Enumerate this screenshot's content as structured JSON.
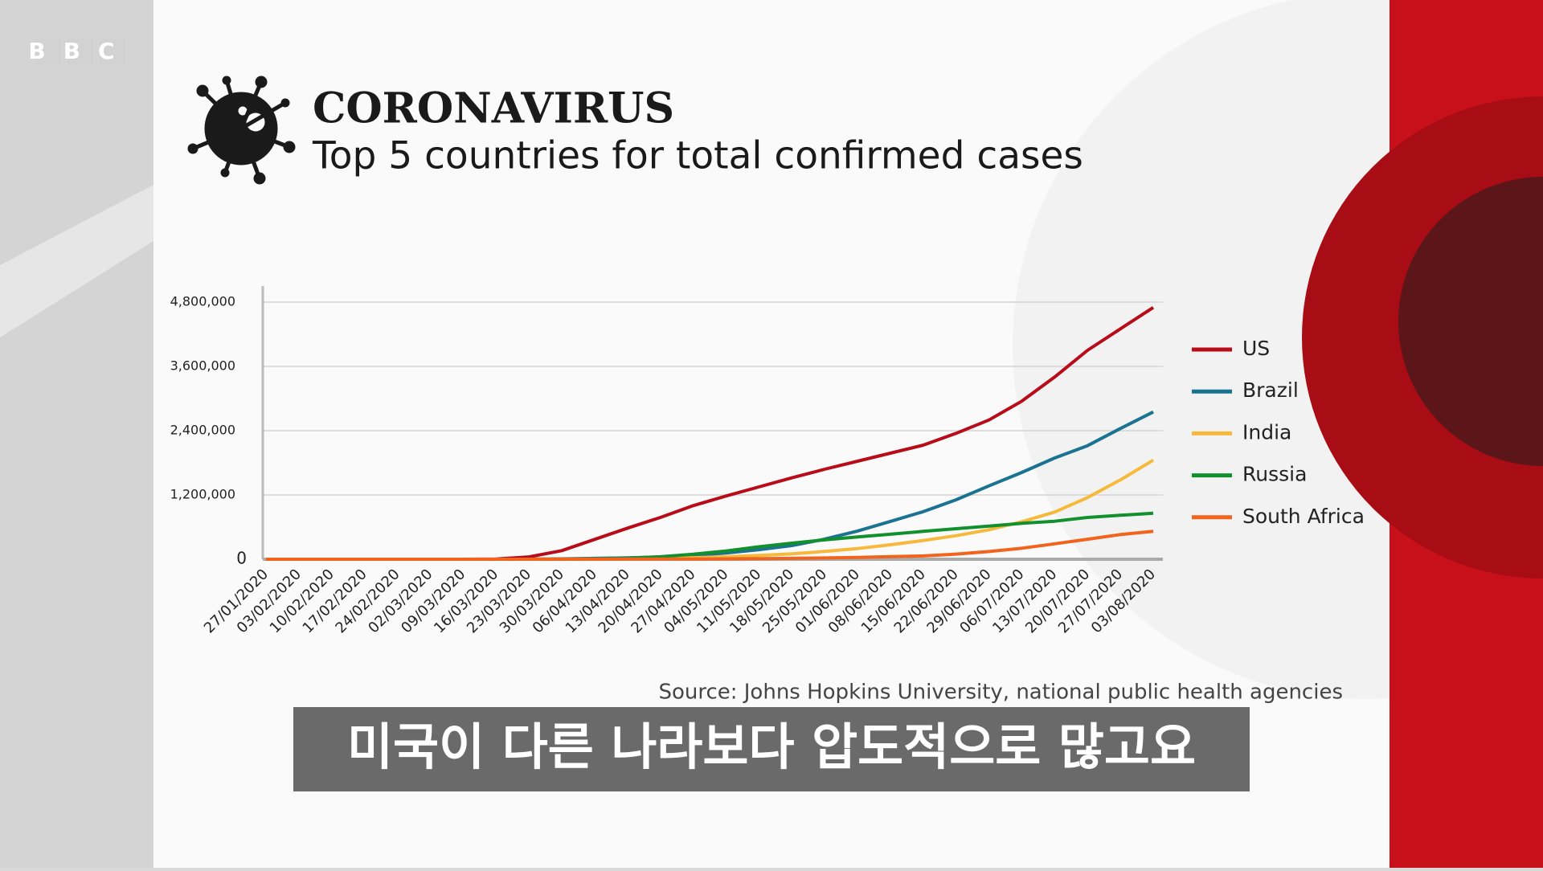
{
  "brand": "BBC",
  "caption": "미국이 다른 나라보다 압도적으로 많고요",
  "chart_data": {
    "type": "line",
    "title": "CORONAVIRUS",
    "subtitle": "Top 5 countries for total confirmed cases",
    "source": "Source: Johns Hopkins University, national public health agencies",
    "categories": [
      "27/01/2020",
      "03/02/2020",
      "10/02/2020",
      "17/02/2020",
      "24/02/2020",
      "02/03/2020",
      "09/03/2020",
      "16/03/2020",
      "23/03/2020",
      "30/03/2020",
      "06/04/2020",
      "13/04/2020",
      "20/04/2020",
      "27/04/2020",
      "04/05/2020",
      "11/05/2020",
      "18/05/2020",
      "25/05/2020",
      "01/06/2020",
      "08/06/2020",
      "15/06/2020",
      "22/06/2020",
      "29/06/2020",
      "06/07/2020",
      "13/07/2020",
      "20/07/2020",
      "27/07/2020",
      "03/08/2020"
    ],
    "series": [
      {
        "name": "US",
        "color": "#b80d19",
        "values": [
          5,
          11,
          12,
          15,
          15,
          100,
          600,
          4600,
          43000,
          160000,
          370000,
          580000,
          780000,
          1000000,
          1180000,
          1350000,
          1520000,
          1680000,
          1830000,
          1980000,
          2130000,
          2350000,
          2600000,
          2950000,
          3400000,
          3900000,
          4300000,
          4700000
        ]
      },
      {
        "name": "Brazil",
        "color": "#1b7392",
        "values": [
          0,
          0,
          0,
          0,
          0,
          0,
          0,
          200,
          1900,
          6800,
          16000,
          25000,
          43000,
          72000,
          115000,
          178000,
          255000,
          375000,
          526000,
          707000,
          888000,
          1110000,
          1370000,
          1620000,
          1890000,
          2120000,
          2440000,
          2750000
        ]
      },
      {
        "name": "India",
        "color": "#f6b93b",
        "values": [
          0,
          0,
          0,
          0,
          0,
          0,
          0,
          0,
          500,
          1300,
          5000,
          10000,
          18000,
          29000,
          46000,
          70000,
          100000,
          145000,
          200000,
          270000,
          350000,
          440000,
          550000,
          700000,
          880000,
          1150000,
          1480000,
          1850000
        ]
      },
      {
        "name": "Russia",
        "color": "#12902e",
        "values": [
          0,
          0,
          0,
          0,
          0,
          0,
          0,
          0,
          400,
          1800,
          7500,
          18000,
          47000,
          94000,
          155000,
          232000,
          300000,
          362000,
          415000,
          467000,
          520000,
          570000,
          620000,
          670000,
          710000,
          780000,
          820000,
          860000
        ]
      },
      {
        "name": "South Africa",
        "color": "#f2641e",
        "values": [
          0,
          0,
          0,
          0,
          0,
          0,
          0,
          0,
          400,
          1300,
          1900,
          2300,
          3300,
          4800,
          7600,
          11000,
          17000,
          23600,
          34000,
          48000,
          62000,
          96000,
          144000,
          206000,
          288000,
          373000,
          460000,
          520000
        ]
      }
    ],
    "ylim": [
      0,
      4800000
    ],
    "yticks": [
      0,
      {
        "value": 1200000,
        "label": "1,200,000"
      },
      {
        "value": 2400000,
        "label": "2,400,000"
      },
      {
        "value": 3600000,
        "label": "3,600,000"
      },
      {
        "value": 4800000,
        "label": "4,800,000"
      }
    ],
    "grid": true
  }
}
